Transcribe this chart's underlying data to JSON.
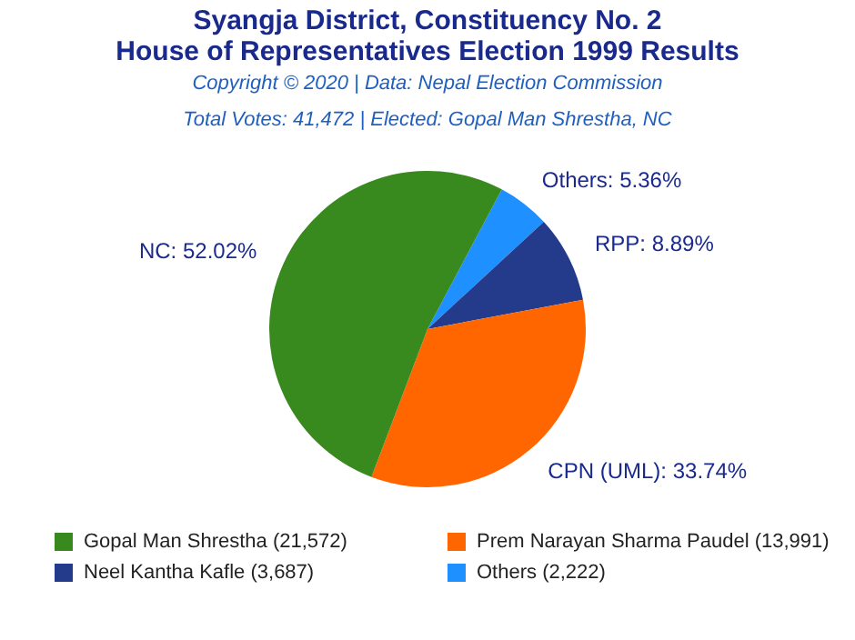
{
  "chart_data": {
    "type": "pie",
    "title": "Syangja District, Constituency No. 2\nHouse of Representatives Election 1999 Results",
    "subtitle": "Copyright © 2020 | Data: Nepal Election Commission",
    "annotations": [
      "Total Votes: 41,472 | Elected: Gopal Man Shrestha, NC"
    ],
    "categories": [
      "Gopal Man Shrestha (21,572)",
      "Prem Narayan Sharma Paudel (13,991)",
      "Neel Kantha Kafle (3,687)",
      "Others (2,222)"
    ],
    "values": [
      52.02,
      33.74,
      8.89,
      5.36
    ],
    "value_labels": [
      "NC: 52.02%",
      "CPN (UML): 33.74%",
      "RPP: 8.89%",
      "Others: 5.36%"
    ],
    "colors": [
      "#38891e",
      "#ff6600",
      "#243a8a",
      "#1e90ff"
    ],
    "legend": "bottom"
  }
}
